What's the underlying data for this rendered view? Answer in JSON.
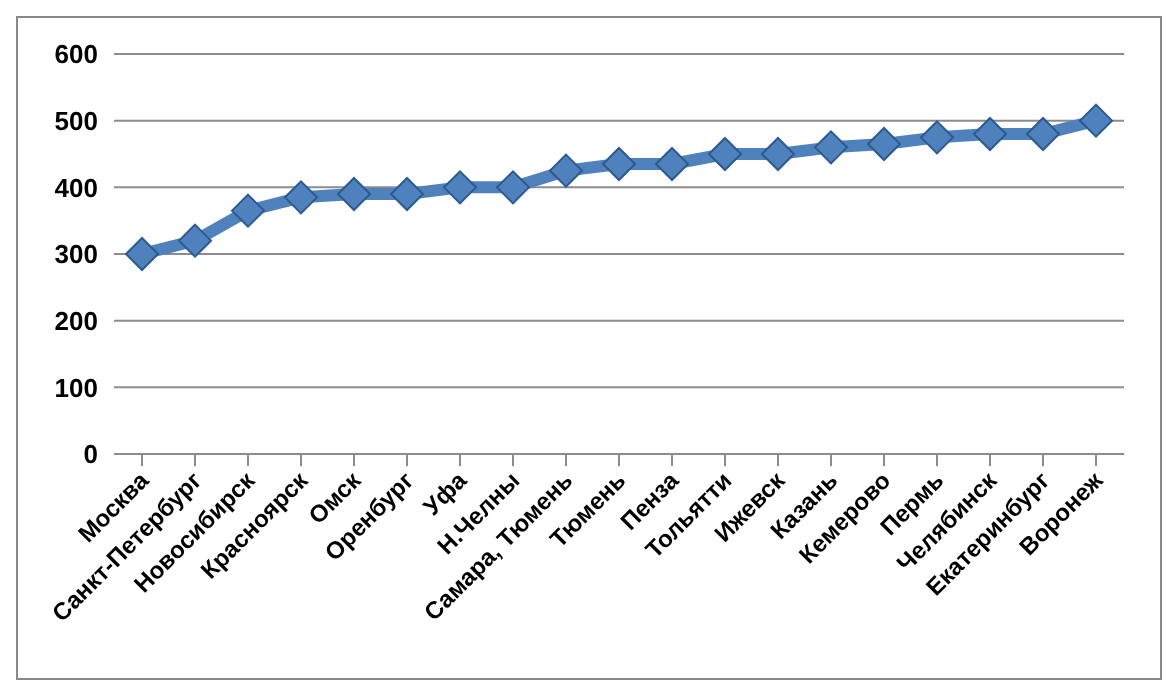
{
  "chart_data": {
    "type": "line",
    "categories": [
      "Москва",
      "Санкт-Петербург",
      "Новосибирск",
      "Красноярск",
      "Омск",
      "Оренбург",
      "Уфа",
      "Н.Челны",
      "Самара, Тюмень",
      "Тюмень",
      "Пенза",
      "Тольятти",
      "Ижевск",
      "Казань",
      "Кемерово",
      "Пермь",
      "Челябинск",
      "Екатеринбург",
      "Воронеж"
    ],
    "series": [
      {
        "color": "#4f81bd",
        "values": [
          300,
          320,
          365,
          385,
          390,
          390,
          400,
          400,
          425,
          435,
          435,
          450,
          450,
          460,
          465,
          475,
          480,
          480,
          500
        ]
      }
    ],
    "ylim": [
      0,
      600
    ],
    "yticks": [
      0,
      100,
      200,
      300,
      400,
      500,
      600
    ],
    "grid": "y",
    "marker": "diamond",
    "line_style": "solid"
  }
}
